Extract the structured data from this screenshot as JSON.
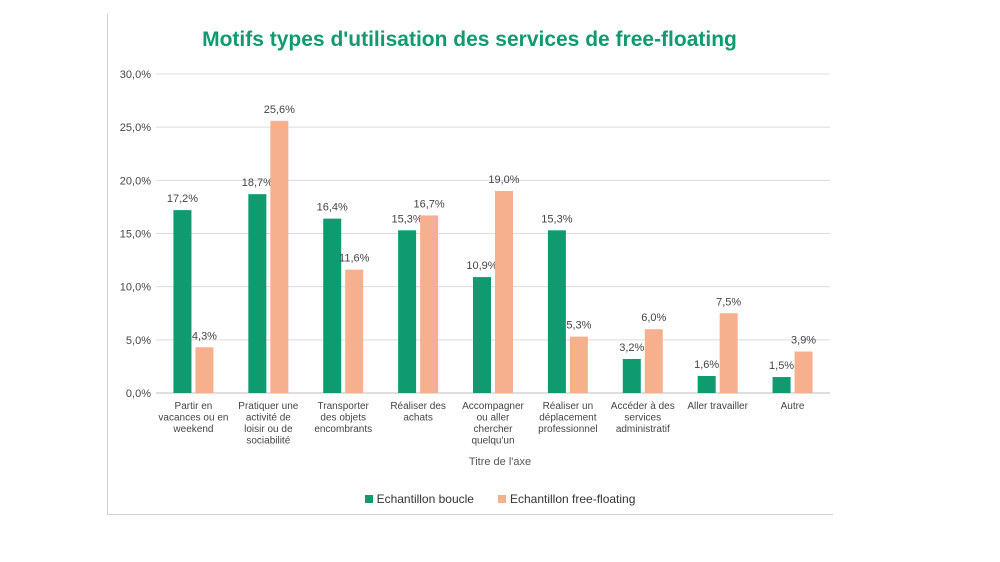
{
  "chart_data": {
    "type": "bar",
    "title": "Motifs types d'utilisation des services de free-floating",
    "xlabel": "Titre de l'axe",
    "ylabel": "",
    "ylim": [
      0,
      30
    ],
    "yticks": [
      "0,0%",
      "5,0%",
      "10,0%",
      "15,0%",
      "20,0%",
      "25,0%",
      "30,0%"
    ],
    "grid": true,
    "legend_position": "bottom",
    "categories": [
      [
        "Partir en",
        "vacances ou en",
        "weekend"
      ],
      [
        "Pratiquer une",
        "activité de",
        "loisir ou de",
        "sociabilité"
      ],
      [
        "Transporter",
        "des objets",
        "encombrants"
      ],
      [
        "Réaliser des",
        "achats"
      ],
      [
        "Accompagner",
        "ou aller",
        "chercher",
        "quelqu'un"
      ],
      [
        "Réaliser un",
        "déplacement",
        "professionnel"
      ],
      [
        "Accéder à des",
        "services",
        "administratif"
      ],
      [
        "Aller travailler"
      ],
      [
        "Autre"
      ]
    ],
    "series": [
      {
        "name": "Echantillon boucle",
        "color": "#0f9a70",
        "values": [
          17.2,
          18.7,
          16.4,
          15.3,
          10.9,
          15.3,
          3.2,
          1.6,
          1.5
        ],
        "labels": [
          "17,2%",
          "18,7%",
          "16,4%",
          "15,3%",
          "10,9%",
          "15,3%",
          "3,2%",
          "1,6%",
          "1,5%"
        ]
      },
      {
        "name": "Echantillon free-floating",
        "color": "#f7b08e",
        "values": [
          4.3,
          25.6,
          11.6,
          16.7,
          19.0,
          5.3,
          6.0,
          7.5,
          3.9
        ],
        "labels": [
          "4,3%",
          "25,6%",
          "11,6%",
          "16,7%",
          "19,0%",
          "5,3%",
          "6,0%",
          "7,5%",
          "3,9%"
        ]
      }
    ]
  }
}
